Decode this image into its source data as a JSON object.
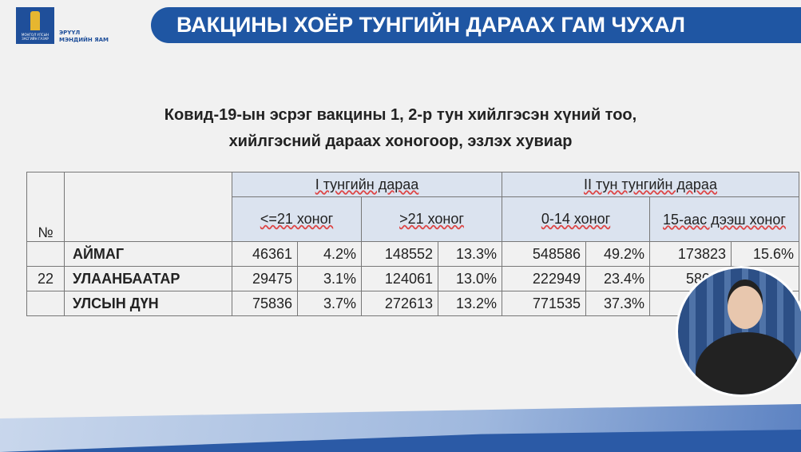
{
  "header": {
    "logo_text": "МОНГОЛ УЛСЫН ЗАСГИЙН ГАЗАР",
    "org_line1": "ЭРҮҮЛ",
    "org_line2": "МЭНДИЙН ЯАМ",
    "banner": "ВАКЦИНЫ ХОЁР ТУНГИЙН ДАРААХ ГАМ ЧУХАЛ"
  },
  "title": {
    "line1": "Ковид-19-ын эсрэг вакцины 1, 2-р тун хийлгэсэн хүний тоо,",
    "line2": "хийлгэсний дараах хоногоор, эзлэх хувиар"
  },
  "table": {
    "no_header": "№",
    "group1": "I тунгийн дараа",
    "group2": "II тун тунгийн дараа",
    "sub": [
      "<=21 хоног",
      ">21 хоног",
      "0-14 хоног",
      "15-аас дээш хоног"
    ],
    "rows": [
      {
        "no": "",
        "name": "АЙМАГ",
        "cells": [
          "46361",
          "4.2%",
          "148552",
          "13.3%",
          "548586",
          "49.2%",
          "173823",
          "15.6%"
        ]
      },
      {
        "no": "22",
        "name": "УЛААНБААТАР",
        "cells": [
          "29475",
          "3.1%",
          "124061",
          "13.0%",
          "222949",
          "23.4%",
          "58019",
          ""
        ]
      },
      {
        "no": "",
        "name": "УЛСЫН ДҮН",
        "cells": [
          "75836",
          "3.7%",
          "272613",
          "13.2%",
          "771535",
          "37.3%",
          "754",
          ""
        ]
      }
    ]
  }
}
